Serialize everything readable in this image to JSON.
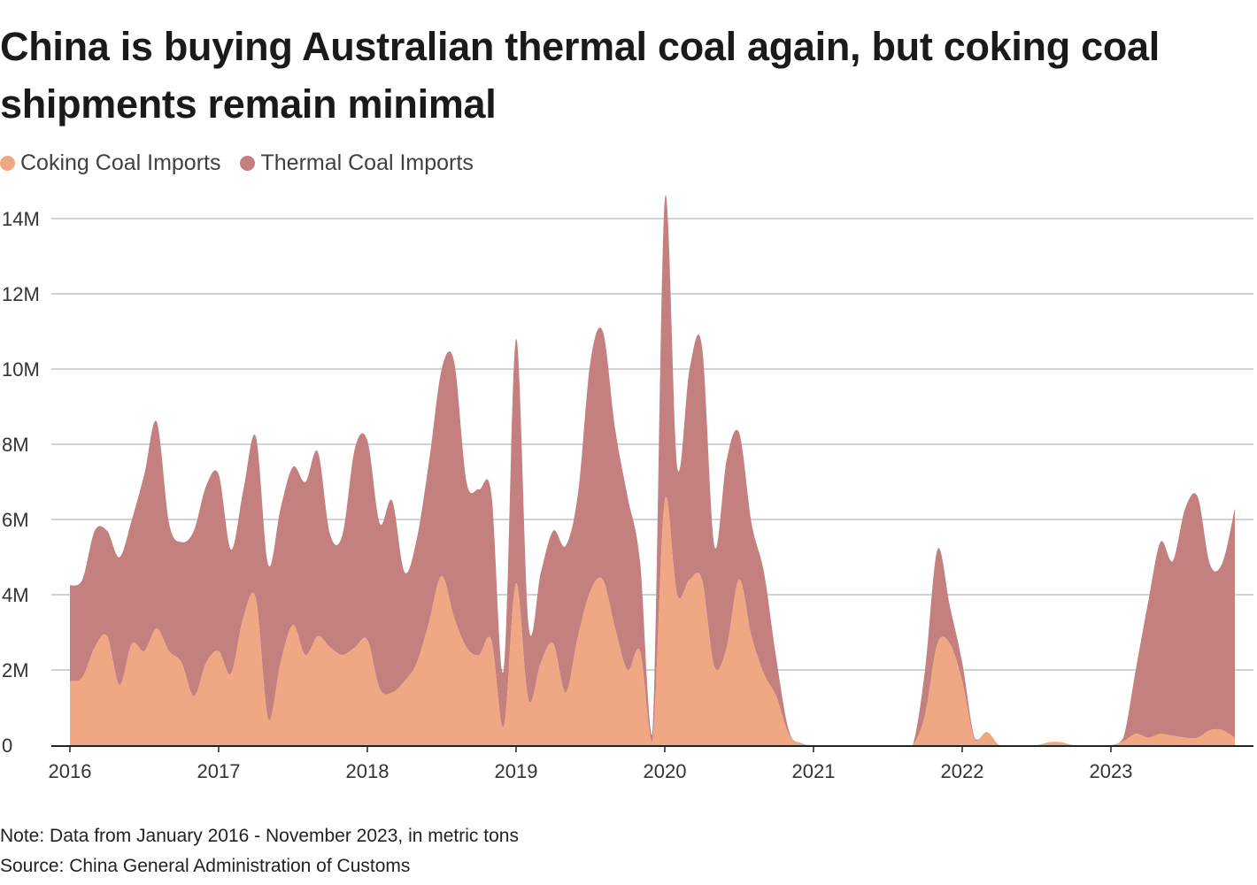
{
  "chart_data": {
    "type": "area",
    "stacked": true,
    "title": "China is buying Australian thermal coal again, but coking coal shipments remain minimal",
    "x_start": "2016-01",
    "x_end": "2023-11",
    "frequency": "monthly",
    "x_ticks": [
      "2016",
      "2017",
      "2018",
      "2019",
      "2020",
      "2021",
      "2022",
      "2023"
    ],
    "y_ticks": [
      "0",
      "2M",
      "4M",
      "6M",
      "8M",
      "10M",
      "12M",
      "14M"
    ],
    "ylim": [
      0,
      14000000
    ],
    "grid": true,
    "legend_position": "top-left",
    "series": [
      {
        "name": "Coking Coal Imports",
        "color": "#f0a884",
        "values_millions": [
          1.7,
          1.8,
          2.6,
          2.9,
          1.6,
          2.7,
          2.5,
          3.1,
          2.5,
          2.2,
          1.3,
          2.2,
          2.5,
          1.9,
          3.4,
          3.9,
          0.7,
          2.2,
          3.2,
          2.4,
          2.9,
          2.6,
          2.4,
          2.6,
          2.8,
          1.5,
          1.4,
          1.7,
          2.2,
          3.3,
          4.5,
          3.4,
          2.6,
          2.4,
          2.8,
          0.5,
          4.3,
          1.2,
          2.2,
          2.7,
          1.4,
          2.9,
          4.1,
          4.4,
          3.1,
          2.0,
          2.5,
          0.1,
          6.5,
          4.0,
          4.4,
          4.4,
          2.1,
          2.6,
          4.4,
          2.9,
          1.9,
          1.3,
          0.3,
          0.03,
          0,
          0,
          0,
          0,
          0,
          0,
          0,
          0,
          0,
          0.8,
          2.7,
          2.7,
          1.7,
          0.15,
          0.35,
          0,
          0,
          0,
          0,
          0.08,
          0.08,
          0,
          0,
          0,
          0,
          0.1,
          0.3,
          0.2,
          0.3,
          0.25,
          0.2,
          0.2,
          0.4,
          0.4,
          0.2
        ]
      },
      {
        "name": "Thermal Coal Imports",
        "color": "#c47f7f",
        "values_millions": [
          2.55,
          2.6,
          3.1,
          2.8,
          3.4,
          3.3,
          4.7,
          5.5,
          3.4,
          3.2,
          4.4,
          4.7,
          4.7,
          3.3,
          3.4,
          4.3,
          4.1,
          4.1,
          4.2,
          4.6,
          4.9,
          3.0,
          3.2,
          5.3,
          5.3,
          4.4,
          5.1,
          2.9,
          3.3,
          4.3,
          5.5,
          6.8,
          4.4,
          4.4,
          3.9,
          1.5,
          6.5,
          2.0,
          2.4,
          3.0,
          3.9,
          3.8,
          6.1,
          6.6,
          5.3,
          4.6,
          2.4,
          0.2,
          8.0,
          3.4,
          5.6,
          6.2,
          3.2,
          5.0,
          3.9,
          3.0,
          2.7,
          1.0,
          0.1,
          0.02,
          0,
          0,
          0,
          0,
          0,
          0,
          0,
          0,
          0,
          1.2,
          2.5,
          1.0,
          0.5,
          0.05,
          0,
          0,
          0,
          0,
          0,
          0,
          0,
          0,
          0,
          0,
          0,
          0.1,
          1.7,
          3.6,
          5.1,
          4.65,
          6.1,
          6.4,
          4.4,
          4.45,
          6.1
        ]
      }
    ]
  },
  "notes": {
    "note": "Note: Data from January 2016 - November 2023, in metric tons",
    "source": "Source: China General Administration of Customs"
  }
}
